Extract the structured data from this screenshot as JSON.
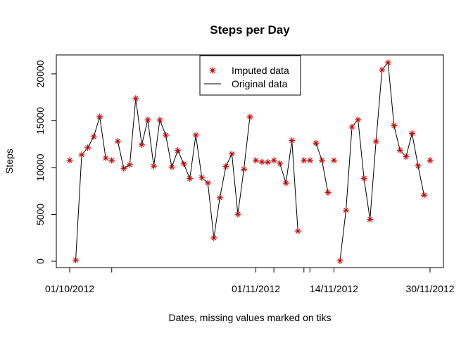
{
  "chart_data": {
    "type": "scatter",
    "title": "Steps per Day",
    "xlabel": "Dates, missing values marked on tiks",
    "ylabel": "Steps",
    "ylim": [
      0,
      21194
    ],
    "xlim": [
      "2012-10-01",
      "2012-11-30"
    ],
    "yticks": [
      0,
      5000,
      10000,
      15000,
      20000
    ],
    "xtick_labels": [
      "01/10/2012",
      "01/11/2012",
      "14/11/2012",
      "30/11/2012"
    ],
    "minor_xticks": [
      "2012-10-08",
      "2012-11-04",
      "2012-11-09",
      "2012-11-10"
    ],
    "grid": false,
    "legend": "top-center",
    "dates": [
      "2012-10-01",
      "2012-10-02",
      "2012-10-03",
      "2012-10-04",
      "2012-10-05",
      "2012-10-06",
      "2012-10-07",
      "2012-10-08",
      "2012-10-09",
      "2012-10-10",
      "2012-10-11",
      "2012-10-12",
      "2012-10-13",
      "2012-10-14",
      "2012-10-15",
      "2012-10-16",
      "2012-10-17",
      "2012-10-18",
      "2012-10-19",
      "2012-10-20",
      "2012-10-21",
      "2012-10-22",
      "2012-10-23",
      "2012-10-24",
      "2012-10-25",
      "2012-10-26",
      "2012-10-27",
      "2012-10-28",
      "2012-10-29",
      "2012-10-30",
      "2012-10-31",
      "2012-11-01",
      "2012-11-02",
      "2012-11-03",
      "2012-11-04",
      "2012-11-05",
      "2012-11-06",
      "2012-11-07",
      "2012-11-08",
      "2012-11-09",
      "2012-11-10",
      "2012-11-11",
      "2012-11-12",
      "2012-11-13",
      "2012-11-14",
      "2012-11-15",
      "2012-11-16",
      "2012-11-17",
      "2012-11-18",
      "2012-11-19",
      "2012-11-20",
      "2012-11-21",
      "2012-11-22",
      "2012-11-23",
      "2012-11-24",
      "2012-11-25",
      "2012-11-26",
      "2012-11-27",
      "2012-11-28",
      "2012-11-29",
      "2012-11-30"
    ],
    "series": [
      {
        "name": "Imputed data",
        "marker": "asterisk",
        "color": "#cc0000",
        "values": [
          10766,
          126,
          11352,
          12116,
          13294,
          15420,
          11015,
          10766,
          12811,
          9900,
          10304,
          17382,
          12426,
          15098,
          10139,
          15084,
          13452,
          10056,
          11829,
          10395,
          8821,
          13460,
          8918,
          8355,
          2492,
          6778,
          10119,
          11458,
          5018,
          9819,
          15414,
          10766,
          10600,
          10571,
          10766,
          10439,
          8334,
          12883,
          3219,
          10766,
          10766,
          12608,
          10765,
          7336,
          10766,
          41,
          5441,
          14339,
          15110,
          8841,
          4472,
          12787,
          20427,
          21194,
          14478,
          11834,
          11162,
          13646,
          10183,
          7047,
          10766
        ]
      },
      {
        "name": "Original data",
        "marker": "line",
        "color": "#000000",
        "values": [
          null,
          126,
          11352,
          12116,
          13294,
          15420,
          11015,
          null,
          12811,
          9900,
          10304,
          17382,
          12426,
          15098,
          10139,
          15084,
          13452,
          10056,
          11829,
          10395,
          8821,
          13460,
          8918,
          8355,
          2492,
          6778,
          10119,
          11458,
          5018,
          9819,
          15414,
          null,
          10600,
          10571,
          null,
          10439,
          8334,
          12883,
          3219,
          null,
          null,
          12608,
          10765,
          7336,
          null,
          41,
          5441,
          14339,
          15110,
          8841,
          4472,
          12787,
          20427,
          21194,
          14478,
          11834,
          11162,
          13646,
          10183,
          7047,
          null
        ]
      }
    ]
  }
}
